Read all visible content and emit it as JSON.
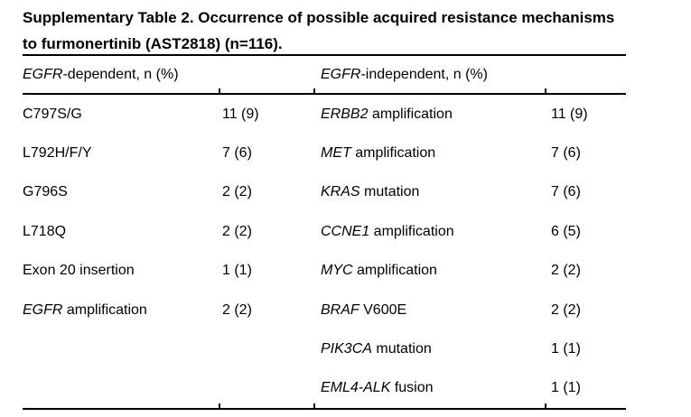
{
  "title": {
    "line1": "Supplementary Table 2. Occurrence of possible acquired resistance mechanisms",
    "line2": "to furmonertinib (AST2818) (n=116)."
  },
  "table": {
    "header_left": {
      "gene": "EGFR",
      "rest": "-dependent, n (%)"
    },
    "header_right": {
      "gene": "EGFR",
      "rest": "-independent, n (%)"
    },
    "rows": [
      {
        "l_gene": "",
        "l_rest": "C797S/G",
        "l_val": "11 (9)",
        "r_gene": "ERBB2",
        "r_rest": " amplification",
        "r_val": "11 (9)"
      },
      {
        "l_gene": "",
        "l_rest": "L792H/F/Y",
        "l_val": "7 (6)",
        "r_gene": "MET",
        "r_rest": " amplification",
        "r_val": "7 (6)"
      },
      {
        "l_gene": "",
        "l_rest": "G796S",
        "l_val": "2 (2)",
        "r_gene": "KRAS",
        "r_rest": " mutation",
        "r_val": "7 (6)"
      },
      {
        "l_gene": "",
        "l_rest": "L718Q",
        "l_val": "2 (2)",
        "r_gene": "CCNE1",
        "r_rest": " amplification",
        "r_val": "6 (5)"
      },
      {
        "l_gene": "",
        "l_rest": "Exon 20 insertion",
        "l_val": "1 (1)",
        "r_gene": "MYC",
        "r_rest": " amplification",
        "r_val": "2 (2)"
      },
      {
        "l_gene": "EGFR",
        "l_rest": " amplification",
        "l_val": "2 (2)",
        "r_gene": "BRAF",
        "r_rest": " V600E",
        "r_val": "2 (2)"
      },
      {
        "l_gene": "",
        "l_rest": "",
        "l_val": "",
        "r_gene": "PIK3CA",
        "r_rest": " mutation",
        "r_val": "1 (1)"
      },
      {
        "l_gene": "",
        "l_rest": "",
        "l_val": "",
        "r_gene": "EML4-ALK",
        "r_rest": " fusion",
        "r_val": "1 (1)"
      }
    ]
  }
}
